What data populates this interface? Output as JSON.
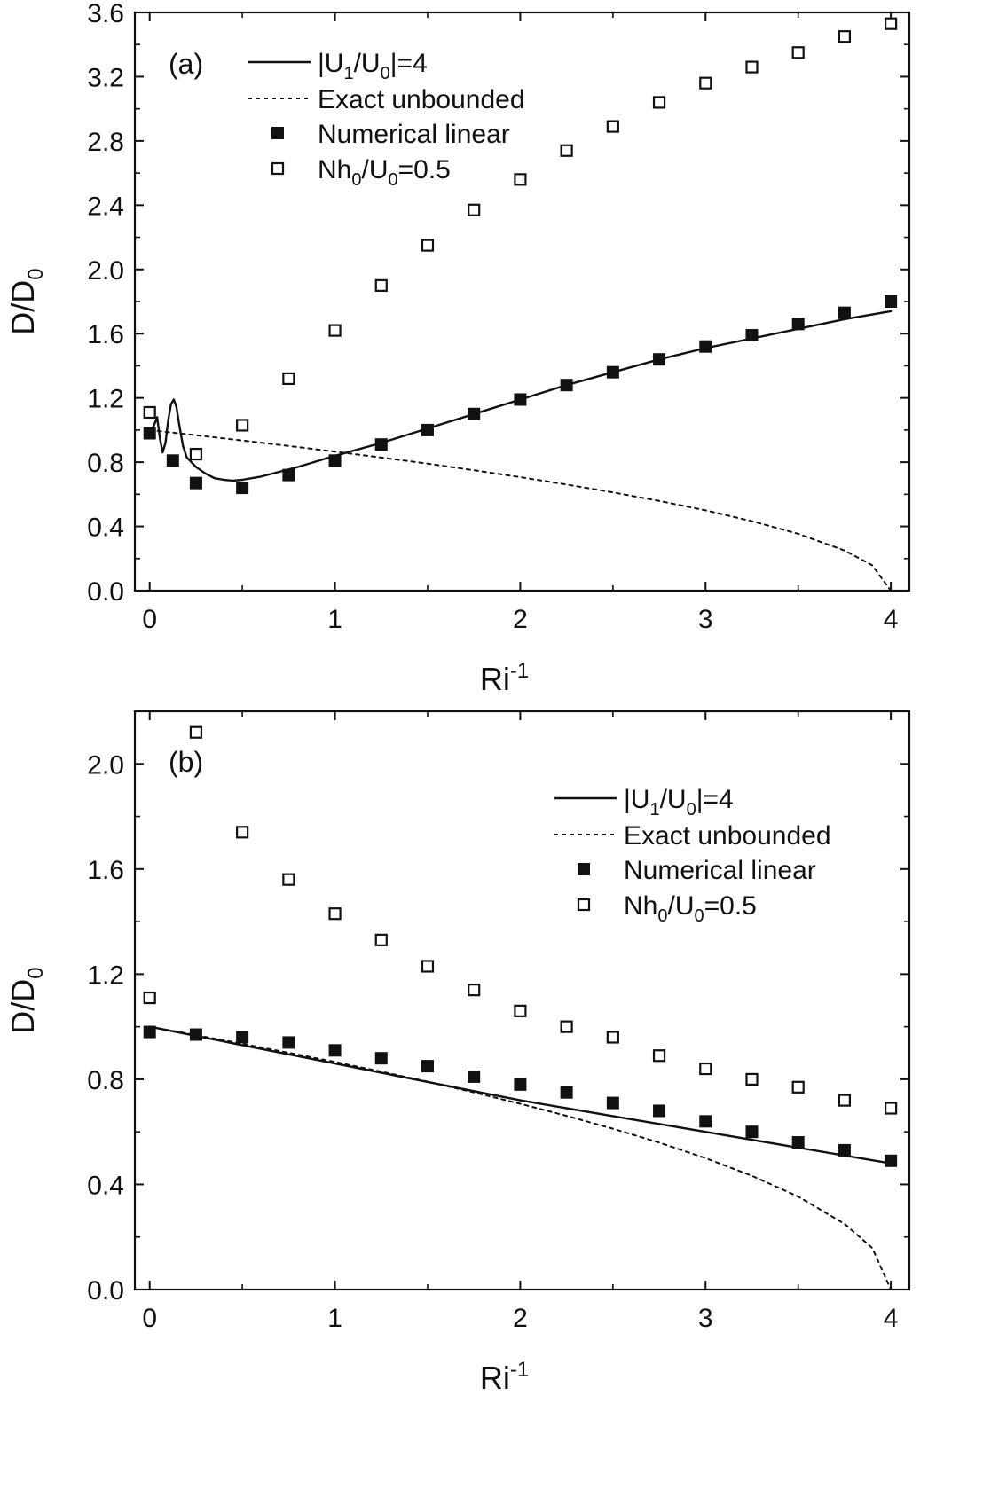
{
  "chart_data": [
    {
      "type": "line",
      "panel_label": "(a)",
      "xlabel": "Ri",
      "xlabel_sup": "-1",
      "ylabel": "D/D",
      "ylabel_sub": "0",
      "xlim": [
        -0.08,
        4.1
      ],
      "ylim": [
        0.0,
        3.6
      ],
      "xticks": [
        0,
        1,
        2,
        3,
        4
      ],
      "xtick_labels": [
        "0",
        "1",
        "2",
        "3",
        "4"
      ],
      "yticks": [
        0.0,
        0.4,
        0.8,
        1.2,
        1.6,
        2.0,
        2.4,
        2.8,
        3.2,
        3.6
      ],
      "ytick_labels": [
        "0.0",
        "0.4",
        "0.8",
        "1.2",
        "1.6",
        "2.0",
        "2.4",
        "2.8",
        "3.2",
        "3.6"
      ],
      "legend_position": "top-left",
      "series": [
        {
          "name": "|U1/U0|=4",
          "style": "solid-line",
          "x": [
            0.0,
            0.02,
            0.04,
            0.055,
            0.07,
            0.085,
            0.1,
            0.115,
            0.13,
            0.145,
            0.16,
            0.18,
            0.2,
            0.25,
            0.3,
            0.35,
            0.4,
            0.45,
            0.5,
            0.55,
            0.6,
            0.7,
            0.8,
            1.0,
            1.25,
            1.5,
            1.75,
            2.0,
            2.25,
            2.5,
            2.75,
            3.0,
            3.25,
            3.5,
            3.75,
            4.0
          ],
          "y": [
            1.0,
            1.02,
            1.08,
            0.95,
            0.86,
            0.92,
            1.06,
            1.16,
            1.19,
            1.14,
            1.03,
            0.9,
            0.83,
            0.77,
            0.73,
            0.7,
            0.69,
            0.685,
            0.69,
            0.7,
            0.71,
            0.74,
            0.77,
            0.84,
            0.92,
            1.01,
            1.1,
            1.19,
            1.28,
            1.36,
            1.44,
            1.51,
            1.57,
            1.63,
            1.69,
            1.74
          ]
        },
        {
          "name": "Exact unbounded",
          "style": "dotted-line",
          "x": [
            0.0,
            0.25,
            0.5,
            0.75,
            1.0,
            1.25,
            1.5,
            1.75,
            2.0,
            2.25,
            2.5,
            2.75,
            3.0,
            3.25,
            3.5,
            3.75,
            3.9,
            4.0
          ],
          "y": [
            1.0,
            0.968,
            0.935,
            0.901,
            0.866,
            0.829,
            0.791,
            0.75,
            0.707,
            0.661,
            0.612,
            0.559,
            0.5,
            0.433,
            0.354,
            0.25,
            0.158,
            0.0
          ]
        },
        {
          "name": "Numerical linear",
          "style": "filled-square",
          "x": [
            0.0,
            0.125,
            0.25,
            0.5,
            0.75,
            1.0,
            1.25,
            1.5,
            1.75,
            2.0,
            2.25,
            2.5,
            2.75,
            3.0,
            3.25,
            3.5,
            3.75,
            4.0
          ],
          "y": [
            0.98,
            0.81,
            0.67,
            0.64,
            0.72,
            0.81,
            0.91,
            1.0,
            1.1,
            1.19,
            1.28,
            1.36,
            1.44,
            1.52,
            1.59,
            1.66,
            1.73,
            1.8
          ]
        },
        {
          "name": "Nh0/U0=0.5",
          "style": "open-square",
          "x": [
            0.0,
            0.25,
            0.5,
            0.75,
            1.0,
            1.25,
            1.5,
            1.75,
            2.0,
            2.25,
            2.5,
            2.75,
            3.0,
            3.25,
            3.5,
            3.75,
            4.0
          ],
          "y": [
            1.11,
            0.85,
            1.03,
            1.32,
            1.62,
            1.9,
            2.15,
            2.37,
            2.56,
            2.74,
            2.89,
            3.04,
            3.16,
            3.26,
            3.35,
            3.45,
            3.53
          ]
        }
      ]
    },
    {
      "type": "line",
      "panel_label": "(b)",
      "xlabel": "Ri",
      "xlabel_sup": "-1",
      "ylabel": "D/D",
      "ylabel_sub": "0",
      "xlim": [
        -0.08,
        4.1
      ],
      "ylim": [
        0.0,
        2.2
      ],
      "xticks": [
        0,
        1,
        2,
        3,
        4
      ],
      "xtick_labels": [
        "0",
        "1",
        "2",
        "3",
        "4"
      ],
      "yticks": [
        0.0,
        0.4,
        0.8,
        1.2,
        1.6,
        2.0
      ],
      "ytick_labels": [
        "0.0",
        "0.4",
        "0.8",
        "1.2",
        "1.6",
        "2.0"
      ],
      "legend_position": "top-right",
      "series": [
        {
          "name": "|U1/U0|=4",
          "style": "solid-line",
          "x": [
            0.0,
            0.5,
            1.0,
            1.5,
            2.0,
            2.5,
            3.0,
            3.5,
            4.0
          ],
          "y": [
            1.0,
            0.93,
            0.86,
            0.79,
            0.72,
            0.66,
            0.6,
            0.54,
            0.48
          ]
        },
        {
          "name": "Exact unbounded",
          "style": "dotted-line",
          "x": [
            0.0,
            0.25,
            0.5,
            0.75,
            1.0,
            1.25,
            1.5,
            1.75,
            2.0,
            2.25,
            2.5,
            2.75,
            3.0,
            3.25,
            3.5,
            3.75,
            3.9,
            4.0
          ],
          "y": [
            1.0,
            0.968,
            0.935,
            0.901,
            0.866,
            0.829,
            0.791,
            0.75,
            0.707,
            0.661,
            0.612,
            0.559,
            0.5,
            0.433,
            0.354,
            0.25,
            0.158,
            0.0
          ]
        },
        {
          "name": "Numerical linear",
          "style": "filled-square",
          "x": [
            0.0,
            0.25,
            0.5,
            0.75,
            1.0,
            1.25,
            1.5,
            1.75,
            2.0,
            2.25,
            2.5,
            2.75,
            3.0,
            3.25,
            3.5,
            3.75,
            4.0
          ],
          "y": [
            0.98,
            0.97,
            0.96,
            0.94,
            0.91,
            0.88,
            0.85,
            0.81,
            0.78,
            0.75,
            0.71,
            0.68,
            0.64,
            0.6,
            0.56,
            0.53,
            0.49
          ]
        },
        {
          "name": "Nh0/U0=0.5",
          "style": "open-square",
          "x": [
            0.0,
            0.25,
            0.5,
            0.75,
            1.0,
            1.25,
            1.5,
            1.75,
            2.0,
            2.25,
            2.5,
            2.75,
            3.0,
            3.25,
            3.5,
            3.75,
            4.0
          ],
          "y": [
            1.11,
            2.12,
            1.74,
            1.56,
            1.43,
            1.33,
            1.23,
            1.14,
            1.06,
            1.0,
            0.96,
            0.89,
            0.84,
            0.8,
            0.77,
            0.72,
            0.69
          ]
        }
      ]
    }
  ],
  "legend_display": [
    {
      "pre": "|U",
      "sub1": "1",
      "mid": "/U",
      "sub2": "0",
      "post": "|=4"
    },
    {
      "pre": "Exact unbounded"
    },
    {
      "pre": "Numerical linear"
    },
    {
      "pre": "Nh",
      "sub1": "0",
      "mid": "/U",
      "sub2": "0",
      "post": "=0.5"
    }
  ],
  "colors": {
    "ink": "#111111",
    "background": "#ffffff"
  }
}
